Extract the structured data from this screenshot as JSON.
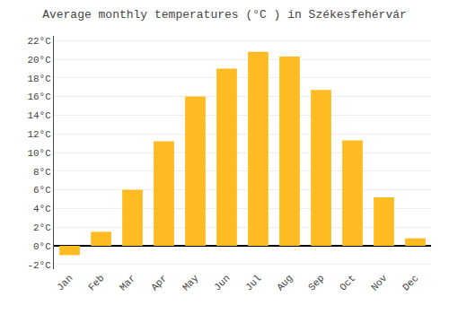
{
  "chart_data": {
    "type": "bar",
    "title": "Average monthly temperatures (°C ) in Székesfehérvár",
    "categories": [
      "Jan",
      "Feb",
      "Mar",
      "Apr",
      "May",
      "Jun",
      "Jul",
      "Aug",
      "Sep",
      "Oct",
      "Nov",
      "Dec"
    ],
    "values": [
      -1.0,
      1.5,
      6.0,
      11.2,
      16.0,
      19.0,
      20.8,
      20.3,
      16.7,
      11.3,
      5.2,
      0.8
    ],
    "color": "#FFBB22",
    "ylim": [
      -2.5,
      22.5
    ],
    "yticks": [
      {
        "value": -2,
        "label": "-2°C"
      },
      {
        "value": 0,
        "label": "0°C"
      },
      {
        "value": 2,
        "label": "2°C"
      },
      {
        "value": 4,
        "label": "4°C"
      },
      {
        "value": 6,
        "label": "6°C"
      },
      {
        "value": 8,
        "label": "8°C"
      },
      {
        "value": 10,
        "label": "10°C"
      },
      {
        "value": 12,
        "label": "12°C"
      },
      {
        "value": 14,
        "label": "14°C"
      },
      {
        "value": 16,
        "label": "16°C"
      },
      {
        "value": 18,
        "label": "18°C"
      },
      {
        "value": 20,
        "label": "20°C"
      },
      {
        "value": 22,
        "label": "22°C"
      }
    ],
    "grid": true
  }
}
